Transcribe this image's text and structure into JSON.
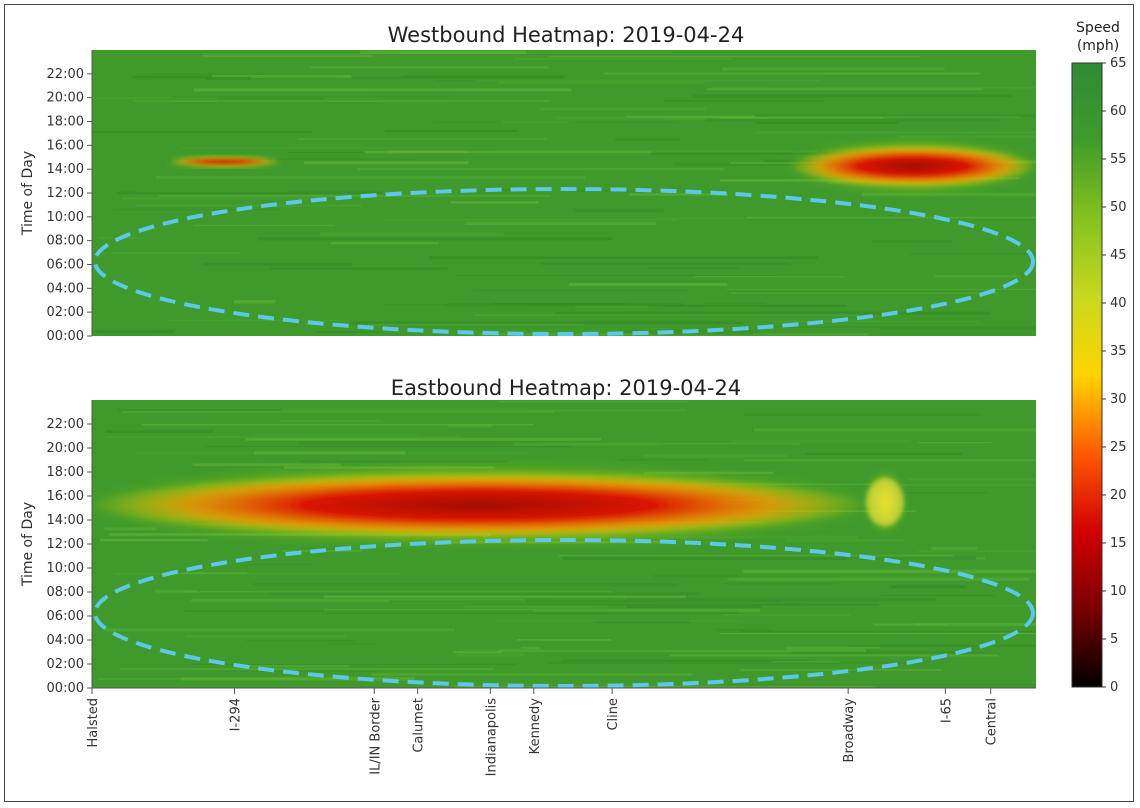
{
  "chart_data": [
    {
      "type": "heatmap",
      "title": "Westbound Heatmap: 2019-04-24",
      "ylabel": "Time of Day",
      "y_ticks": [
        "00:00",
        "02:00",
        "04:00",
        "06:00",
        "08:00",
        "10:00",
        "12:00",
        "14:00",
        "16:00",
        "18:00",
        "20:00",
        "22:00"
      ],
      "x_ticks": [],
      "ylim": [
        "00:00",
        "24:00"
      ],
      "congestion": [
        {
          "from_x": 0.74,
          "to_x": 1.0,
          "from_time": "12:30",
          "to_time": "16:00",
          "min_speed_mph": 15
        },
        {
          "from_x": 0.08,
          "to_x": 0.2,
          "from_time": "14:15",
          "to_time": "15:00",
          "min_speed_mph": 30
        }
      ],
      "highlight": {
        "shape": "dashed-ellipse",
        "color": "#5bc8ec",
        "from_time": "00:00",
        "to_time": "12:30"
      }
    },
    {
      "type": "heatmap",
      "title": "Eastbound Heatmap: 2019-04-24",
      "ylabel": "Time of Day",
      "y_ticks": [
        "00:00",
        "02:00",
        "04:00",
        "06:00",
        "08:00",
        "10:00",
        "12:00",
        "14:00",
        "16:00",
        "18:00",
        "20:00",
        "22:00"
      ],
      "x_ticks": [
        "Halsted",
        "I-294",
        "IL/IN Border",
        "Calumet",
        "Indianapolis",
        "Kennedy",
        "Cline",
        "Broadway",
        "I-65",
        "Central"
      ],
      "ylim": [
        "00:00",
        "24:00"
      ],
      "congestion": [
        {
          "from_x": 0.0,
          "to_x": 0.82,
          "from_time": "12:30",
          "to_time": "18:00",
          "min_speed_mph": 10
        },
        {
          "from_x": 0.82,
          "to_x": 0.86,
          "from_time": "13:30",
          "to_time": "17:30",
          "min_speed_mph": 40
        }
      ],
      "highlight": {
        "shape": "dashed-ellipse",
        "color": "#5bc8ec",
        "from_time": "00:00",
        "to_time": "12:30"
      }
    }
  ],
  "colorbar": {
    "title_line1": "Speed",
    "title_line2": "(mph)",
    "range": [
      0,
      65
    ],
    "ticks": [
      "0",
      "5",
      "10",
      "15",
      "20",
      "25",
      "30",
      "35",
      "40",
      "45",
      "50",
      "55",
      "60",
      "65"
    ],
    "colors": [
      "#000000",
      "#7a0000",
      "#d40000",
      "#ff5a00",
      "#ffd400",
      "#c8d81e",
      "#86c21e",
      "#3f9c2a",
      "#2e8b34"
    ]
  }
}
